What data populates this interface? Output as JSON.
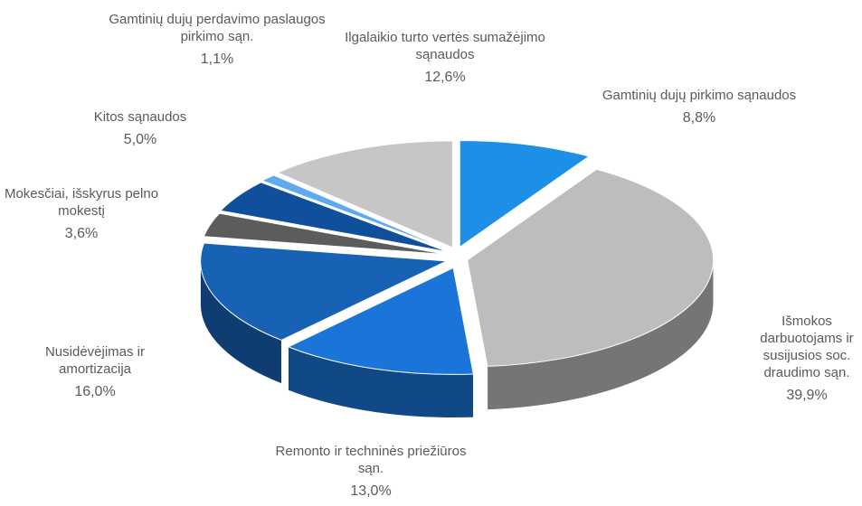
{
  "chart_data": {
    "type": "pie",
    "categories": [
      "Gamtinių dujų pirkimo sąnaudos",
      "Išmokos darbuotojams ir susijusios soc. draudimo sąn.",
      "Remonto ir techninės priežiūros sąn.",
      "Nusidėvėjimas ir amortizacija",
      "Mokesčiai, išskyrus pelno mokestį",
      "Kitos sąnaudos",
      "Gamtinių dujų perdavimo paslaugos pirkimo sąn.",
      "Ilgalaikio turto vertės sumažėjimo sąnaudos"
    ],
    "values": [
      8.8,
      39.9,
      13.0,
      16.0,
      3.6,
      5.0,
      1.1,
      12.6
    ],
    "value_labels": [
      "8,8%",
      "39,9%",
      "13,0%",
      "16,0%",
      "3,6%",
      "5,0%",
      "1,1%",
      "12,6%"
    ],
    "colors": [
      "#1e8fe6",
      "#bdbdbd",
      "#1b74d8",
      "#1862b6",
      "#5c5c5c",
      "#0f4f9c",
      "#5eaaee",
      "#c6c6c6"
    ]
  }
}
